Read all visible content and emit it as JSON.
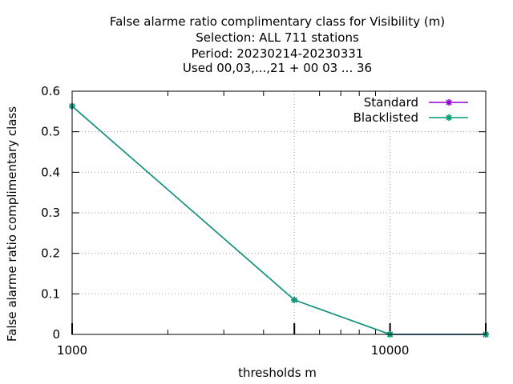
{
  "chart_data": {
    "type": "line",
    "title_lines": [
      "False alarme ratio complimentary class  for Visibility (m)",
      "Selection: ALL    711 stations",
      "Period: 20230214-20230331",
      "Used  00,03,...,21  + 00 03 ... 36"
    ],
    "xlabel": "thresholds m",
    "ylabel": "False alarme ratio complimentary class",
    "x_scale": "log",
    "xlim": [
      1000,
      20000
    ],
    "ylim": [
      0,
      0.6
    ],
    "x_ticks": [
      1000,
      10000
    ],
    "x_tick_labels": [
      "1000",
      "10000"
    ],
    "x_major_tick_marks": [
      1000,
      5000,
      10000,
      20000
    ],
    "y_ticks": [
      0,
      0.1,
      0.2,
      0.3,
      0.4,
      0.5,
      0.6
    ],
    "y_tick_labels": [
      "0",
      "0.1",
      "0.2",
      "0.3",
      "0.4",
      "0.5",
      "0.6"
    ],
    "grid": true,
    "legend_position": "top-right",
    "series": [
      {
        "name": "Standard",
        "color": "#9400d3",
        "x": [
          1000,
          5000,
          10000,
          20000
        ],
        "y": [
          0.563,
          0.085,
          0.0,
          0.0
        ]
      },
      {
        "name": "Blacklisted",
        "color": "#009e73",
        "x": [
          1000,
          5000,
          10000,
          20000
        ],
        "y": [
          0.563,
          0.085,
          0.0,
          0.0
        ]
      }
    ]
  }
}
